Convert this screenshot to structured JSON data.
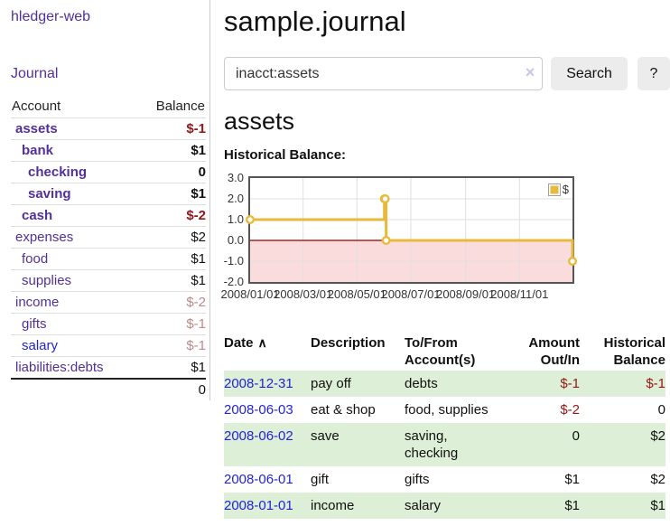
{
  "app": {
    "title": "hledger-web",
    "nav_journal": "Journal"
  },
  "sidebar": {
    "column_headers": {
      "account": "Account",
      "balance": "Balance"
    },
    "accounts": [
      {
        "name": "assets",
        "balance": "$-1",
        "indent": 1,
        "bold": true,
        "balance_style": "neg"
      },
      {
        "name": "bank",
        "balance": "$1",
        "indent": 2,
        "bold": true,
        "balance_style": "normal"
      },
      {
        "name": "checking",
        "balance": "0",
        "indent": 3,
        "bold": true,
        "balance_style": "normal"
      },
      {
        "name": "saving",
        "balance": "$1",
        "indent": 3,
        "bold": true,
        "balance_style": "normal"
      },
      {
        "name": "cash",
        "balance": "$-2",
        "indent": 2,
        "bold": true,
        "balance_style": "neg"
      },
      {
        "name": "expenses",
        "balance": "$2",
        "indent": 1,
        "bold": false,
        "balance_style": "normal"
      },
      {
        "name": "food",
        "balance": "$1",
        "indent": 2,
        "bold": false,
        "balance_style": "normal"
      },
      {
        "name": "supplies",
        "balance": "$1",
        "indent": 2,
        "bold": false,
        "balance_style": "normal"
      },
      {
        "name": "income",
        "balance": "$-2",
        "indent": 1,
        "bold": false,
        "balance_style": "neg-muted"
      },
      {
        "name": "gifts",
        "balance": "$-1",
        "indent": 2,
        "bold": false,
        "balance_style": "neg-muted"
      },
      {
        "name": "salary",
        "balance": "$-1",
        "indent": 2,
        "bold": false,
        "balance_style": "neg-muted",
        "link_style": "new"
      },
      {
        "name": "liabilities:debts",
        "balance": "$1",
        "indent": 1,
        "bold": false,
        "balance_style": "normal"
      }
    ],
    "total": "0"
  },
  "main": {
    "title": "sample.journal",
    "search": {
      "value": "inacct:assets",
      "clear_icon": "×",
      "search_button": "Search",
      "help_button": "?"
    },
    "account_heading": "assets",
    "chart_label": "Historical Balance:"
  },
  "chart_data": {
    "type": "line",
    "title": "Historical Balance",
    "step": true,
    "x_range": [
      "2008-01-01",
      "2008-12-31"
    ],
    "ylim": [
      -2,
      3
    ],
    "yticks": [
      "3.0",
      "2.0",
      "1.0",
      "0.0",
      "-1.0",
      "-2.0"
    ],
    "xticks": [
      "2008/01/01",
      "2008/03/01",
      "2008/05/01",
      "2008/07/01",
      "2008/09/01",
      "2008/11/01"
    ],
    "series": [
      {
        "name": "$",
        "color": "#e7ba3d",
        "points": [
          [
            "2008-01-01",
            1
          ],
          [
            "2008-06-01",
            2
          ],
          [
            "2008-06-02",
            2
          ],
          [
            "2008-06-03",
            0
          ],
          [
            "2008-12-31",
            -1
          ]
        ]
      }
    ],
    "legend": {
      "label": "$",
      "position": "top-right"
    },
    "grid": true,
    "negative_area_color": "#fbdcdc",
    "zero_line_color": "#8b0000",
    "grid_color": "#e0e0e0",
    "point_fill": "#ffffff"
  },
  "register": {
    "columns": [
      {
        "lines": [
          "Date"
        ],
        "sort_icon": "∧",
        "align": "left"
      },
      {
        "lines": [
          "Description"
        ],
        "align": "left"
      },
      {
        "lines": [
          "To/From",
          "Account(s)"
        ],
        "align": "left"
      },
      {
        "lines": [
          "Amount",
          "Out/In"
        ],
        "align": "right"
      },
      {
        "lines": [
          "Historical",
          "Balance"
        ],
        "align": "right"
      }
    ],
    "rows": [
      {
        "date": "2008-12-31",
        "description": "pay off",
        "accounts": [
          "debts"
        ],
        "amount": "$-1",
        "balance": "$-1"
      },
      {
        "date": "2008-06-03",
        "description": "eat & shop",
        "accounts": [
          "food, supplies"
        ],
        "amount": "$-2",
        "balance": "0"
      },
      {
        "date": "2008-06-02",
        "description": "save",
        "accounts": [
          "saving,",
          "checking"
        ],
        "amount": "0",
        "balance": "$2"
      },
      {
        "date": "2008-06-01",
        "description": "gift",
        "accounts": [
          "gifts"
        ],
        "amount": "$1",
        "balance": "$2"
      },
      {
        "date": "2008-01-01",
        "description": "income",
        "accounts": [
          "salary"
        ],
        "amount": "$1",
        "balance": "$1"
      }
    ]
  }
}
